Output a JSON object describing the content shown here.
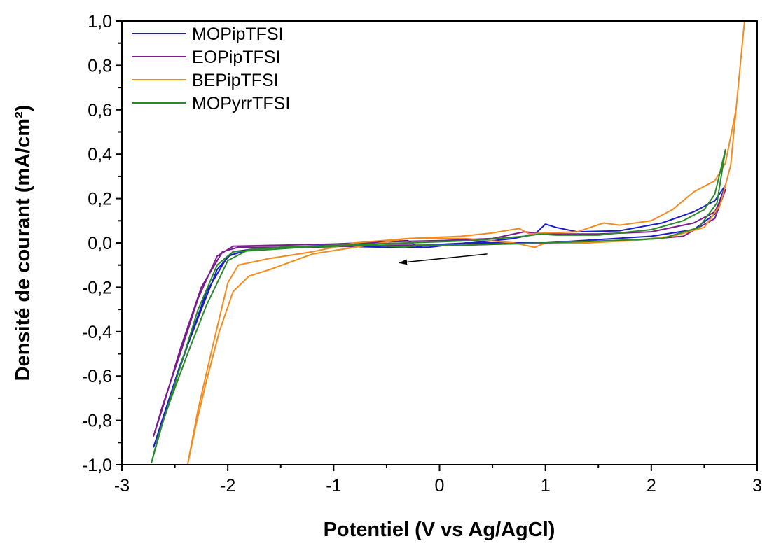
{
  "chart_data": {
    "type": "line",
    "title": "",
    "xlabel": "Potentiel (V vs Ag/AgCl)",
    "ylabel": "Densité de courant (mA/cm²)",
    "xlim": [
      -3,
      3
    ],
    "ylim": [
      -1.0,
      1.0
    ],
    "x_ticks": [
      "-3",
      "-2",
      "-1",
      "0",
      "1",
      "2",
      "3"
    ],
    "y_ticks": [
      "1,0",
      "0,8",
      "0,6",
      "0,4",
      "0,2",
      "0,0",
      "-0,2",
      "-0,4",
      "-0,6",
      "-0,8",
      "-1,0"
    ],
    "grid": false,
    "legend_position": "top-left",
    "annotation": {
      "type": "arrow",
      "direction": "negative scan",
      "from": [
        0.45,
        -0.05
      ],
      "to": [
        -0.38,
        -0.09
      ]
    },
    "series": [
      {
        "name": "MOPipTFSI",
        "color": "#1c1ccf",
        "points": [
          [
            0.25,
            0.0
          ],
          [
            -0.1,
            -0.02
          ],
          [
            -0.5,
            -0.02
          ],
          [
            -1.0,
            -0.015
          ],
          [
            -1.5,
            -0.02
          ],
          [
            -1.8,
            -0.03
          ],
          [
            -2.0,
            -0.06
          ],
          [
            -2.2,
            -0.22
          ],
          [
            -2.35,
            -0.42
          ],
          [
            -2.5,
            -0.63
          ],
          [
            -2.62,
            -0.8
          ],
          [
            -2.7,
            -0.92
          ],
          [
            -2.62,
            -0.8
          ],
          [
            -2.45,
            -0.55
          ],
          [
            -2.25,
            -0.3
          ],
          [
            -2.1,
            -0.12
          ],
          [
            -1.95,
            -0.04
          ],
          [
            -1.7,
            -0.025
          ],
          [
            -1.0,
            -0.01
          ],
          [
            -0.3,
            0.01
          ],
          [
            -0.2,
            -0.02
          ],
          [
            -0.15,
            -0.01
          ],
          [
            0.3,
            0.0
          ],
          [
            0.7,
            0.02
          ],
          [
            0.9,
            0.04
          ],
          [
            1.0,
            0.085
          ],
          [
            1.1,
            0.07
          ],
          [
            1.3,
            0.05
          ],
          [
            1.7,
            0.055
          ],
          [
            2.1,
            0.09
          ],
          [
            2.4,
            0.14
          ],
          [
            2.6,
            0.19
          ],
          [
            2.7,
            0.26
          ],
          [
            2.6,
            0.13
          ],
          [
            2.4,
            0.06
          ],
          [
            2.0,
            0.03
          ],
          [
            1.5,
            0.015
          ],
          [
            1.0,
            0.0
          ],
          [
            0.5,
            0.0
          ],
          [
            0.25,
            0.0
          ]
        ]
      },
      {
        "name": "EOPipTFSI",
        "color": "#7b1c8e",
        "points": [
          [
            0.25,
            -0.01
          ],
          [
            -0.5,
            -0.01
          ],
          [
            -1.2,
            -0.02
          ],
          [
            -1.6,
            -0.02
          ],
          [
            -1.9,
            -0.02
          ],
          [
            -2.05,
            -0.04
          ],
          [
            -2.25,
            -0.2
          ],
          [
            -2.45,
            -0.48
          ],
          [
            -2.6,
            -0.72
          ],
          [
            -2.7,
            -0.87
          ],
          [
            -2.62,
            -0.74
          ],
          [
            -2.45,
            -0.5
          ],
          [
            -2.28,
            -0.25
          ],
          [
            -2.1,
            -0.06
          ],
          [
            -1.95,
            -0.015
          ],
          [
            -1.5,
            -0.01
          ],
          [
            -1.0,
            -0.005
          ],
          [
            -0.5,
            0.005
          ],
          [
            0.0,
            0.01
          ],
          [
            0.5,
            0.02
          ],
          [
            0.8,
            0.05
          ],
          [
            1.0,
            0.04
          ],
          [
            1.5,
            0.04
          ],
          [
            2.0,
            0.05
          ],
          [
            2.4,
            0.09
          ],
          [
            2.6,
            0.14
          ],
          [
            2.7,
            0.24
          ],
          [
            2.6,
            0.11
          ],
          [
            2.3,
            0.03
          ],
          [
            1.8,
            0.01
          ],
          [
            1.2,
            0.0
          ],
          [
            0.6,
            -0.005
          ],
          [
            0.25,
            -0.01
          ]
        ]
      },
      {
        "name": "BEPipTFSI",
        "color": "#f28c1e",
        "points": [
          [
            0.25,
            0.02
          ],
          [
            -0.3,
            0.02
          ],
          [
            -0.8,
            -0.02
          ],
          [
            -1.2,
            -0.05
          ],
          [
            -1.6,
            -0.12
          ],
          [
            -1.8,
            -0.15
          ],
          [
            -1.95,
            -0.22
          ],
          [
            -2.08,
            -0.4
          ],
          [
            -2.2,
            -0.62
          ],
          [
            -2.3,
            -0.82
          ],
          [
            -2.38,
            -1.0
          ],
          [
            -2.28,
            -0.75
          ],
          [
            -2.15,
            -0.48
          ],
          [
            -2.0,
            -0.18
          ],
          [
            -1.9,
            -0.1
          ],
          [
            -1.6,
            -0.07
          ],
          [
            -1.2,
            -0.04
          ],
          [
            -0.8,
            0.0
          ],
          [
            -0.3,
            0.02
          ],
          [
            0.2,
            0.03
          ],
          [
            0.5,
            0.045
          ],
          [
            0.75,
            0.065
          ],
          [
            0.85,
            0.04
          ],
          [
            1.0,
            0.045
          ],
          [
            1.3,
            0.05
          ],
          [
            1.55,
            0.09
          ],
          [
            1.7,
            0.08
          ],
          [
            2.0,
            0.1
          ],
          [
            2.2,
            0.15
          ],
          [
            2.4,
            0.23
          ],
          [
            2.6,
            0.28
          ],
          [
            2.7,
            0.36
          ],
          [
            2.8,
            0.6
          ],
          [
            2.88,
            1.0
          ],
          [
            2.8,
            0.6
          ],
          [
            2.75,
            0.35
          ],
          [
            2.65,
            0.17
          ],
          [
            2.5,
            0.07
          ],
          [
            2.2,
            0.03
          ],
          [
            1.8,
            0.01
          ],
          [
            1.4,
            0.0
          ],
          [
            1.0,
            0.0
          ],
          [
            0.9,
            -0.02
          ],
          [
            0.7,
            0.0
          ],
          [
            0.25,
            0.02
          ]
        ]
      },
      {
        "name": "MOPyrrTFSI",
        "color": "#2a8a2a",
        "points": [
          [
            0.25,
            -0.01
          ],
          [
            -0.2,
            -0.01
          ],
          [
            -0.33,
            -0.02
          ],
          [
            -0.6,
            -0.01
          ],
          [
            -1.0,
            -0.015
          ],
          [
            -1.5,
            -0.02
          ],
          [
            -1.8,
            -0.03
          ],
          [
            -2.0,
            -0.08
          ],
          [
            -2.2,
            -0.28
          ],
          [
            -2.38,
            -0.5
          ],
          [
            -2.55,
            -0.72
          ],
          [
            -2.65,
            -0.86
          ],
          [
            -2.72,
            -0.99
          ],
          [
            -2.62,
            -0.82
          ],
          [
            -2.45,
            -0.56
          ],
          [
            -2.28,
            -0.3
          ],
          [
            -2.1,
            -0.1
          ],
          [
            -1.95,
            -0.04
          ],
          [
            -1.6,
            -0.03
          ],
          [
            -1.0,
            -0.01
          ],
          [
            -0.3,
            0.0
          ],
          [
            0.3,
            0.01
          ],
          [
            0.8,
            0.03
          ],
          [
            0.95,
            0.04
          ],
          [
            1.1,
            0.035
          ],
          [
            1.5,
            0.035
          ],
          [
            2.0,
            0.06
          ],
          [
            2.3,
            0.1
          ],
          [
            2.5,
            0.15
          ],
          [
            2.6,
            0.22
          ],
          [
            2.7,
            0.42
          ],
          [
            2.62,
            0.18
          ],
          [
            2.45,
            0.07
          ],
          [
            2.1,
            0.02
          ],
          [
            1.6,
            0.01
          ],
          [
            1.0,
            0.0
          ],
          [
            0.5,
            -0.005
          ],
          [
            0.25,
            -0.01
          ]
        ]
      }
    ]
  }
}
